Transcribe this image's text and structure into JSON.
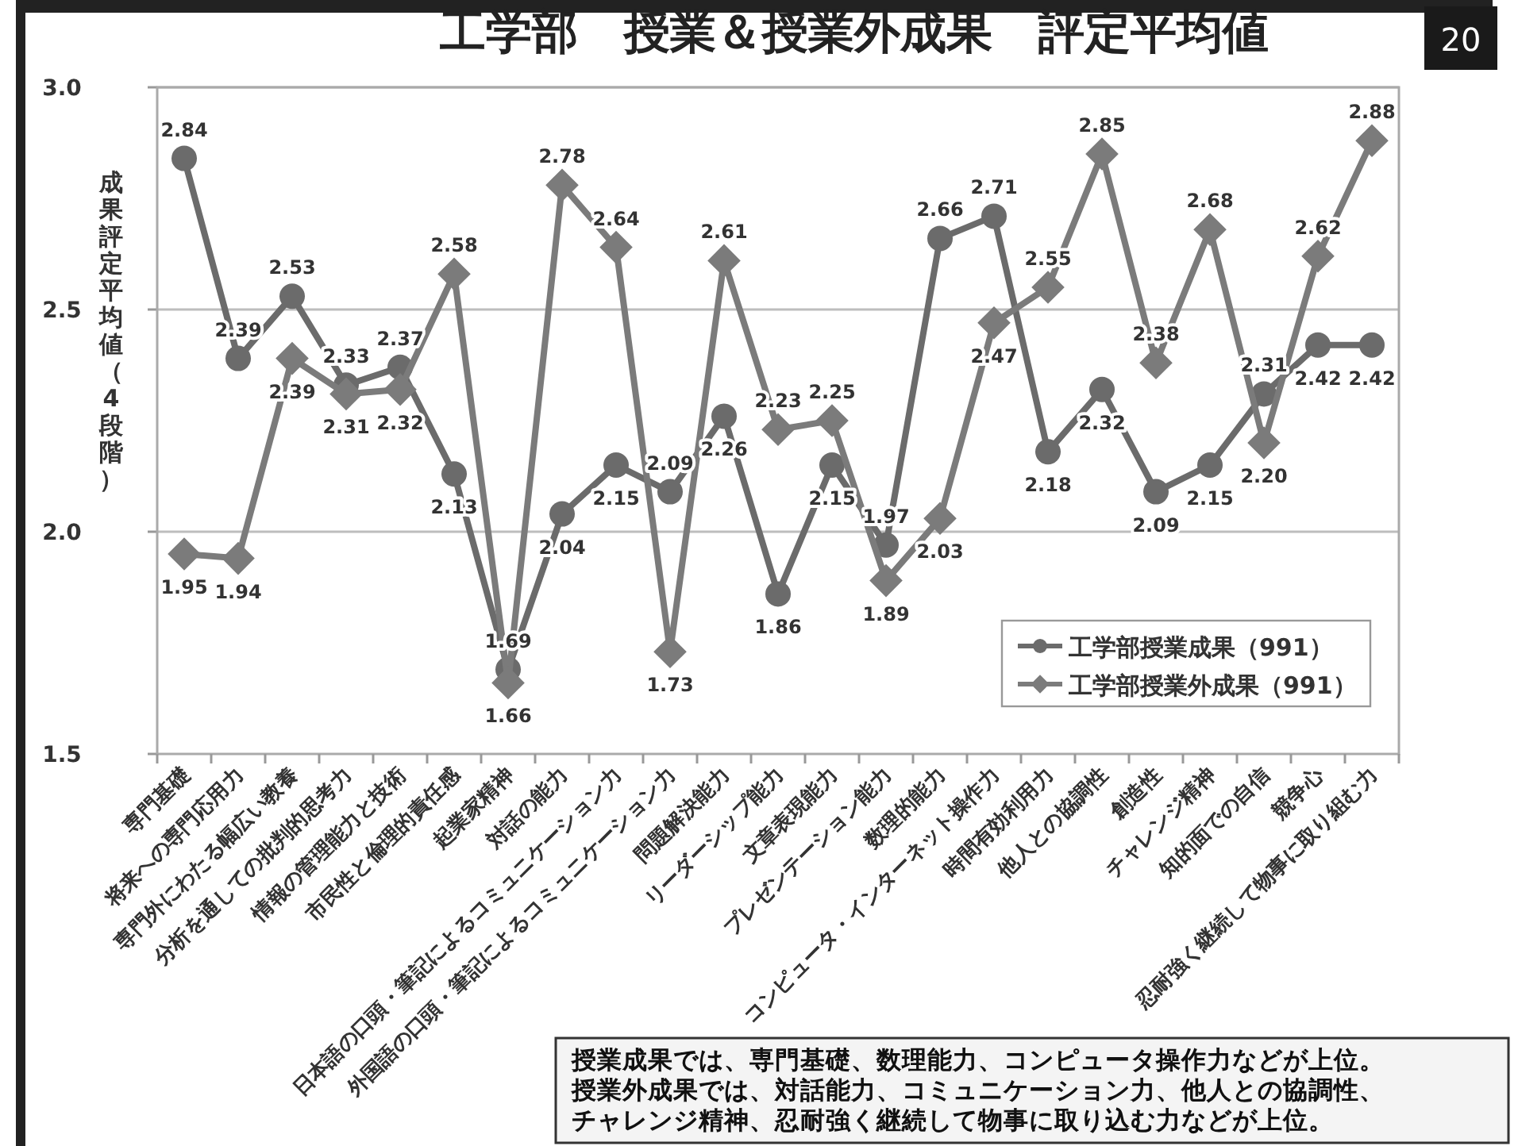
{
  "chart_data": {
    "type": "line",
    "title": "工学部　授業＆授業外成果　評定平均値",
    "ylabel": "成果評定平均値（4段階）",
    "categories": [
      "専門基礎",
      "将来への専門応用力",
      "専門外にわたる幅広い教養",
      "分析を通しての批判的思考力",
      "情報の管理能力と技術",
      "市民性と倫理的責任感",
      "起業家精神",
      "対話の能力",
      "日本語の口頭・筆記によるコミュニケーション力",
      "外国語の口頭・筆記によるコミュニケーション力",
      "問題解決能力",
      "リーダーシップ能力",
      "文章表現能力",
      "プレゼンテーション能力",
      "数理的能力",
      "コンピュータ・インターネット操作力",
      "時間有効利用力",
      "他人との協調性",
      "創造性",
      "チャレンジ精神",
      "知的面での自信",
      "競争心",
      "忍耐強く継続して物事に取り組む力"
    ],
    "series": [
      {
        "name": "工学部授業成果（991）",
        "color": "#6b6b6b",
        "marker": "circle",
        "values": [
          2.84,
          2.39,
          2.53,
          2.33,
          2.37,
          2.13,
          1.69,
          2.04,
          2.15,
          2.09,
          2.26,
          1.86,
          2.15,
          1.97,
          2.66,
          2.71,
          2.18,
          2.32,
          2.09,
          2.15,
          2.31,
          2.42,
          2.42
        ],
        "value_labels": [
          "2.84",
          "2.39",
          "2.53",
          "2.33",
          "2.37",
          "2.13",
          "1.69",
          "2.04",
          "2.15",
          "2.09",
          "2.26",
          "1.86",
          "2.15",
          "1.97",
          "2.66",
          "2.71",
          "2.18",
          "2.32",
          "2.09",
          "2.15",
          "2.31",
          "2.42",
          "2.42"
        ]
      },
      {
        "name": "工学部授業外成果（991）",
        "color": "#7b7b7b",
        "marker": "diamond",
        "values": [
          1.95,
          1.94,
          2.39,
          2.31,
          2.32,
          2.58,
          1.66,
          2.78,
          2.64,
          1.73,
          2.61,
          2.23,
          2.25,
          1.89,
          2.03,
          2.47,
          2.55,
          2.85,
          2.38,
          2.68,
          2.2,
          2.62,
          2.88
        ],
        "value_labels": [
          "1.95",
          "1.94",
          "2.39",
          "2.31",
          "2.32",
          "2.58",
          "1.66",
          "2.78",
          "2.64",
          "1.73",
          "2.61",
          "2.23",
          "2.25",
          "1.89",
          "2.03",
          "2.47",
          "2.55",
          "2.85",
          "2.38",
          "2.68",
          "2.20",
          "2.62",
          "2.88"
        ]
      }
    ],
    "ylim": [
      1.5,
      3.0
    ],
    "yticks": [
      1.5,
      {
        "value": 2.0,
        "label": "2.0"
      },
      2.5,
      {
        "value": 3.0,
        "label": "3.0"
      }
    ],
    "grid": "y",
    "legend": "bottom right",
    "annotations": [
      "20",
      "授業成果では、専門基礎、数理能力、コンピュータ操作力などが上位。",
      "授業外成果では、対話能力、コミュニケーション力、他人との協調性、",
      "チャレンジ精神、忍耐強く継続して物事に取り込む力などが上位。"
    ]
  }
}
